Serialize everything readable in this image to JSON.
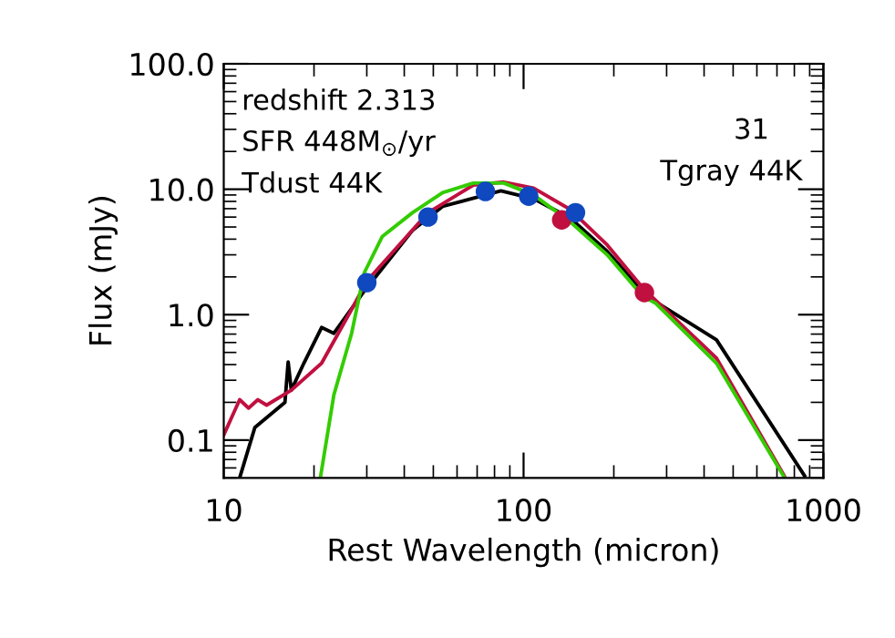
{
  "chart_data": {
    "type": "line",
    "xlabel": "Rest Wavelength (micron)",
    "ylabel": "Flux (mJy)",
    "log": "xy",
    "xlim": [
      10,
      1000
    ],
    "ylim": [
      0.05,
      100
    ],
    "xticks": [
      10,
      100,
      1000
    ],
    "yticks": [
      {
        "value": 0.1,
        "label": "0.1"
      },
      {
        "value": 1,
        "label": "1.0"
      },
      {
        "value": 10,
        "label": "10.0"
      },
      {
        "value": 100,
        "label": "100.0"
      }
    ],
    "annotations": [
      "redshift 2.313",
      "SFR 448M$_{⊙}$/yr",
      "Tdust 44K",
      "31",
      "Tgray 44K"
    ],
    "series": [
      {
        "color": "#000000",
        "x": [
          11.3,
          12.7,
          16,
          16.4,
          16.8,
          18.5,
          21.2,
          23.3,
          29.4,
          42.6,
          53.7,
          84,
          108,
          143,
          190,
          260,
          440,
          865
        ],
        "values": [
          0.05,
          0.126,
          0.2,
          0.42,
          0.25,
          0.41,
          0.79,
          0.71,
          1.54,
          4.7,
          7.3,
          9.7,
          8.4,
          5.9,
          3.2,
          1.38,
          0.63,
          0.052
        ]
      },
      {
        "color": "#c0103f",
        "x": [
          10,
          11.3,
          12.1,
          13.0,
          13.9,
          16.8,
          21.2,
          26.7,
          30,
          48,
          68,
          86,
          108,
          143,
          190,
          250,
          440,
          740
        ],
        "values": [
          0.11,
          0.21,
          0.18,
          0.21,
          0.19,
          0.25,
          0.41,
          1.1,
          1.85,
          6.5,
          10.8,
          11.4,
          10.2,
          6.9,
          3.6,
          1.63,
          0.45,
          0.052
        ]
      },
      {
        "color": "#33cc00",
        "x": [
          21,
          23.3,
          26.7,
          29.4,
          33.8,
          42.6,
          53.7,
          68,
          86,
          108,
          143,
          190,
          250,
          276,
          440,
          735
        ],
        "values": [
          0.05,
          0.23,
          0.71,
          2.15,
          4.2,
          6.5,
          9.4,
          11.2,
          11.2,
          9.0,
          5.5,
          3.0,
          1.4,
          1.23,
          0.41,
          0.052
        ]
      },
      {
        "type": "scatter",
        "color": "#c0103f",
        "marker": "circle",
        "x": [
          134,
          253
        ],
        "values": [
          5.7,
          1.5
        ]
      },
      {
        "type": "scatter",
        "color": "#1048c0",
        "marker": "circle",
        "x": [
          30,
          48,
          74.6,
          104,
          149
        ],
        "values": [
          1.8,
          6.0,
          9.6,
          8.8,
          6.5
        ]
      }
    ]
  }
}
